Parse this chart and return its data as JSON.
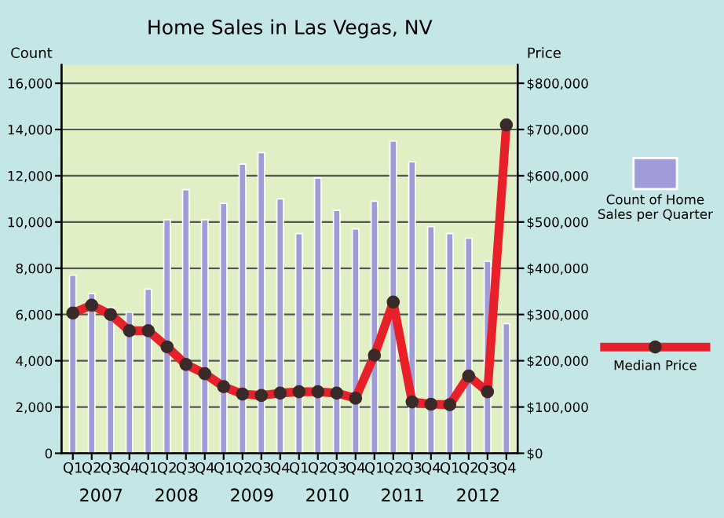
{
  "chart_data": {
    "type": "bar",
    "title": "Home Sales in Las Vegas, NV",
    "ylabel": "Count",
    "y2label": "Price",
    "categories": [
      "Q1",
      "Q2",
      "Q3",
      "Q4",
      "Q1",
      "Q2",
      "Q3",
      "Q4",
      "Q1",
      "Q2",
      "Q3",
      "Q4",
      "Q1",
      "Q2",
      "Q3",
      "Q4",
      "Q1",
      "Q2",
      "Q3",
      "Q4",
      "Q1",
      "Q2",
      "Q3",
      "Q4"
    ],
    "annotations": [
      "2007",
      "2008",
      "2009",
      "2010",
      "2011",
      "2012"
    ],
    "series": [
      {
        "name": "Count of Home Sales per Quarter",
        "color": "#a09cd8",
        "values": [
          7700,
          6900,
          6300,
          6100,
          7100,
          10100,
          11400,
          10100,
          10800,
          12500,
          13000,
          11000,
          9500,
          11900,
          10500,
          9700,
          10900,
          13500,
          12600,
          9800,
          9500,
          9300,
          8300,
          5600
        ]
      },
      {
        "name": "Median Price",
        "type": "line",
        "axis": "y2",
        "color": "#e8202a",
        "marker": "circle",
        "line_style": "solid",
        "values": [
          303000,
          320000,
          300000,
          265000,
          265000,
          230000,
          192000,
          172000,
          144000,
          128000,
          125000,
          130000,
          133000,
          133000,
          130000,
          119000,
          212000,
          327000,
          111000,
          106000,
          105000,
          167000,
          133000,
          710000
        ]
      }
    ],
    "ylim": [
      0,
      16800
    ],
    "yticks": [
      0,
      {
        "value": 2000,
        "label": "2,000"
      },
      {
        "value": 4000,
        "label": "4,000"
      },
      {
        "value": 6000,
        "label": "6,000"
      },
      {
        "value": 8000,
        "label": "8,000"
      },
      {
        "value": 10000,
        "label": "10,000"
      },
      {
        "value": 12000,
        "label": "12,000"
      },
      {
        "value": 14000,
        "label": "14,000"
      },
      {
        "value": 16000,
        "label": "16,000"
      }
    ],
    "y2lim": [
      0,
      840000
    ],
    "y2ticks": [
      {
        "value": 0,
        "label": "$0"
      },
      {
        "value": 100000,
        "label": "$100,000"
      },
      {
        "value": 200000,
        "label": "$200,000"
      },
      {
        "value": 300000,
        "label": "$300,000"
      },
      {
        "value": 400000,
        "label": "$400,000"
      },
      {
        "value": 500000,
        "label": "$500,000"
      },
      {
        "value": 600000,
        "label": "$600,000"
      },
      {
        "value": 700000,
        "label": "$700,000"
      },
      {
        "value": 800000,
        "label": "$800,000"
      }
    ],
    "grid": "y",
    "legend": "right"
  }
}
